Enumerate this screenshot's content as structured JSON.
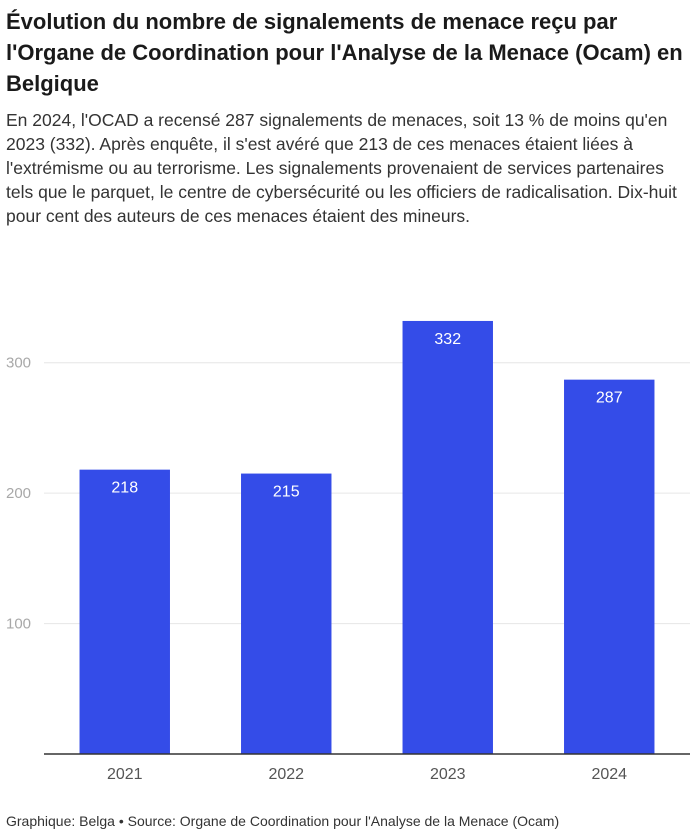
{
  "title": "Évolution du nombre de signalements de menace reçu par l'Organe de Coordination pour l'Analyse de la Menace (Ocam) en Belgique",
  "description": "En 2024, l'OCAD a recensé 287 signalements de menaces, soit 13 % de moins qu'en 2023 (332). Après enquête, il s'est avéré que 213 de ces menaces étaient liées à l'extrémisme ou au terrorisme. Les signalements provenaient de services partenaires tels que le parquet, le centre de cybersécurité ou les officiers de radicalisation. Dix-huit pour cent des auteurs de ces menaces étaient des mineurs.",
  "source": "Graphique: Belga • Source: Organe de Coordination pour l'Analyse de la Menace (Ocam)",
  "colors": {
    "bar": "#344ce8",
    "bar_label": "#ffffff",
    "axis": "#333333",
    "grid": "#e6e6e6",
    "tick_label": "#a8a8a8",
    "category_label": "#555555"
  },
  "chart_data": {
    "type": "bar",
    "categories": [
      "2021",
      "2022",
      "2023",
      "2024"
    ],
    "values": [
      218,
      215,
      332,
      287
    ],
    "data_labels": [
      "218",
      "215",
      "332",
      "287"
    ],
    "y_ticks": [
      100,
      200,
      300
    ],
    "y_tick_labels": [
      "100",
      "200",
      "300"
    ],
    "ylim": [
      0,
      345
    ],
    "grid": "horizontal",
    "legend": "none",
    "xlabel": "",
    "ylabel": ""
  }
}
